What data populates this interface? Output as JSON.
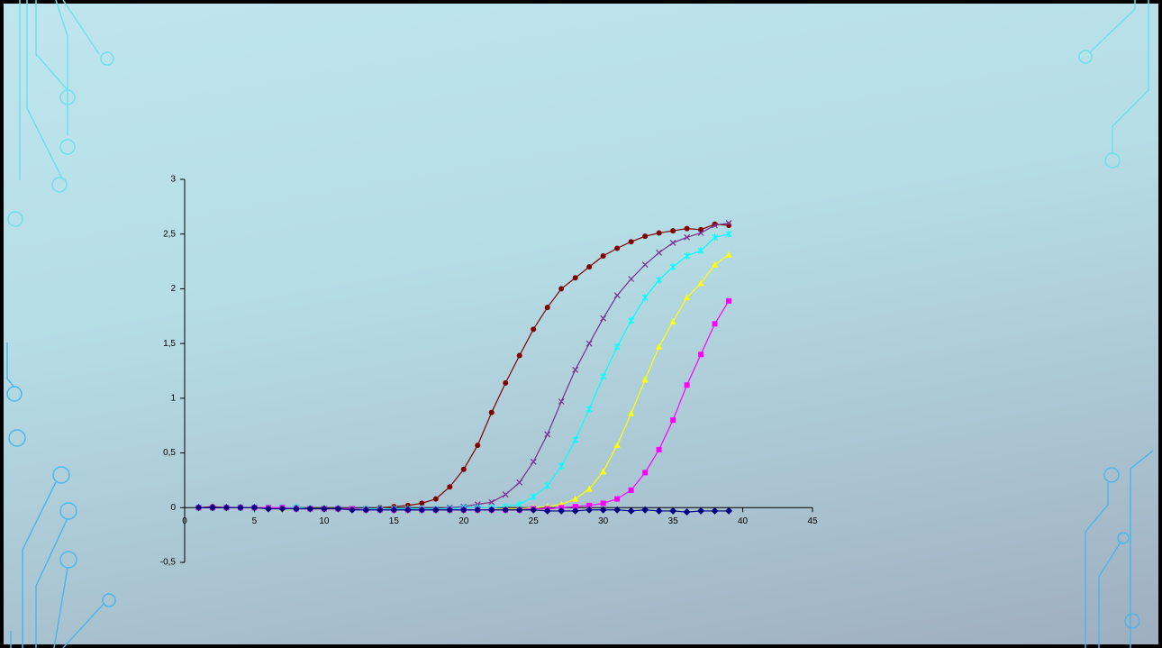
{
  "chart_data": {
    "type": "line",
    "x": [
      1,
      2,
      3,
      4,
      5,
      6,
      7,
      8,
      9,
      10,
      11,
      12,
      13,
      14,
      15,
      16,
      17,
      18,
      19,
      20,
      21,
      22,
      23,
      24,
      25,
      26,
      27,
      28,
      29,
      30,
      31,
      32,
      33,
      34,
      35,
      36,
      37,
      38,
      39
    ],
    "series": [
      {
        "color": "#800000",
        "marker": "circle",
        "values": [
          0,
          0.01,
          0,
          0,
          0,
          -0.01,
          0,
          0,
          -0.01,
          -0.01,
          -0.01,
          -0.01,
          -0.01,
          0,
          0.01,
          0.02,
          0.04,
          0.08,
          0.19,
          0.35,
          0.57,
          0.87,
          1.14,
          1.39,
          1.63,
          1.83,
          2.0,
          2.1,
          2.2,
          2.3,
          2.37,
          2.43,
          2.48,
          2.51,
          2.53,
          2.55,
          2.54,
          2.59,
          2.58
        ]
      },
      {
        "color": "#7b2c8e",
        "marker": "x",
        "values": [
          0,
          0,
          0,
          0,
          0,
          0,
          0,
          0,
          -0.01,
          -0.01,
          -0.01,
          -0.01,
          -0.01,
          -0.01,
          -0.01,
          -0.01,
          -0.01,
          -0.01,
          0,
          0.01,
          0.03,
          0.05,
          0.12,
          0.23,
          0.42,
          0.67,
          0.97,
          1.26,
          1.5,
          1.73,
          1.94,
          2.09,
          2.22,
          2.33,
          2.42,
          2.47,
          2.51,
          2.58,
          2.6
        ]
      },
      {
        "color": "#00ffff",
        "marker": "star",
        "values": [
          0,
          0,
          0,
          0,
          0,
          0,
          0,
          0,
          -0.01,
          -0.01,
          -0.01,
          -0.01,
          -0.01,
          -0.01,
          -0.01,
          -0.01,
          -0.01,
          -0.01,
          -0.01,
          0,
          0,
          0,
          0.01,
          0.03,
          0.1,
          0.2,
          0.38,
          0.62,
          0.9,
          1.2,
          1.47,
          1.71,
          1.92,
          2.08,
          2.2,
          2.3,
          2.35,
          2.47,
          2.5
        ]
      },
      {
        "color": "#ffff00",
        "marker": "triangle",
        "values": [
          0,
          0,
          0,
          0,
          0,
          0,
          -0.01,
          -0.01,
          -0.01,
          -0.01,
          -0.01,
          -0.01,
          -0.02,
          -0.02,
          -0.02,
          -0.02,
          -0.02,
          -0.02,
          -0.02,
          -0.02,
          -0.02,
          -0.02,
          -0.01,
          -0.01,
          0,
          0.01,
          0.03,
          0.08,
          0.17,
          0.33,
          0.57,
          0.86,
          1.17,
          1.47,
          1.7,
          1.92,
          2.05,
          2.22,
          2.31
        ]
      },
      {
        "color": "#ff00ff",
        "marker": "square",
        "values": [
          0,
          0,
          0,
          0,
          0,
          0,
          0,
          -0.01,
          -0.01,
          -0.01,
          -0.01,
          -0.01,
          -0.02,
          -0.02,
          -0.02,
          -0.02,
          -0.02,
          -0.02,
          -0.02,
          -0.02,
          -0.02,
          -0.02,
          -0.02,
          -0.02,
          -0.01,
          -0.01,
          0,
          0.01,
          0.02,
          0.04,
          0.08,
          0.16,
          0.32,
          0.53,
          0.8,
          1.12,
          1.4,
          1.68,
          1.89
        ]
      },
      {
        "color": "#000080",
        "marker": "diamond",
        "values": [
          0,
          0,
          0,
          0,
          0,
          -0.01,
          -0.01,
          -0.01,
          -0.01,
          -0.01,
          -0.01,
          -0.02,
          -0.02,
          -0.02,
          -0.02,
          -0.02,
          -0.02,
          -0.02,
          -0.02,
          -0.02,
          -0.02,
          -0.02,
          -0.02,
          -0.02,
          -0.02,
          -0.03,
          -0.03,
          -0.03,
          -0.02,
          -0.02,
          -0.02,
          -0.03,
          -0.02,
          -0.03,
          -0.03,
          -0.04,
          -0.03,
          -0.03,
          -0.03
        ]
      }
    ],
    "xlim": [
      0,
      45
    ],
    "xticks": [
      0,
      5,
      10,
      15,
      20,
      25,
      30,
      35,
      40,
      45
    ],
    "ylim": [
      -0.5,
      3
    ],
    "yticks": [
      {
        "value": -0.5,
        "label": "-0,5"
      },
      0,
      {
        "value": 0.5,
        "label": "0,5"
      },
      1,
      {
        "value": 1.5,
        "label": "1,5"
      },
      2,
      {
        "value": 2.5,
        "label": "2,5"
      },
      3
    ],
    "grid": false
  }
}
